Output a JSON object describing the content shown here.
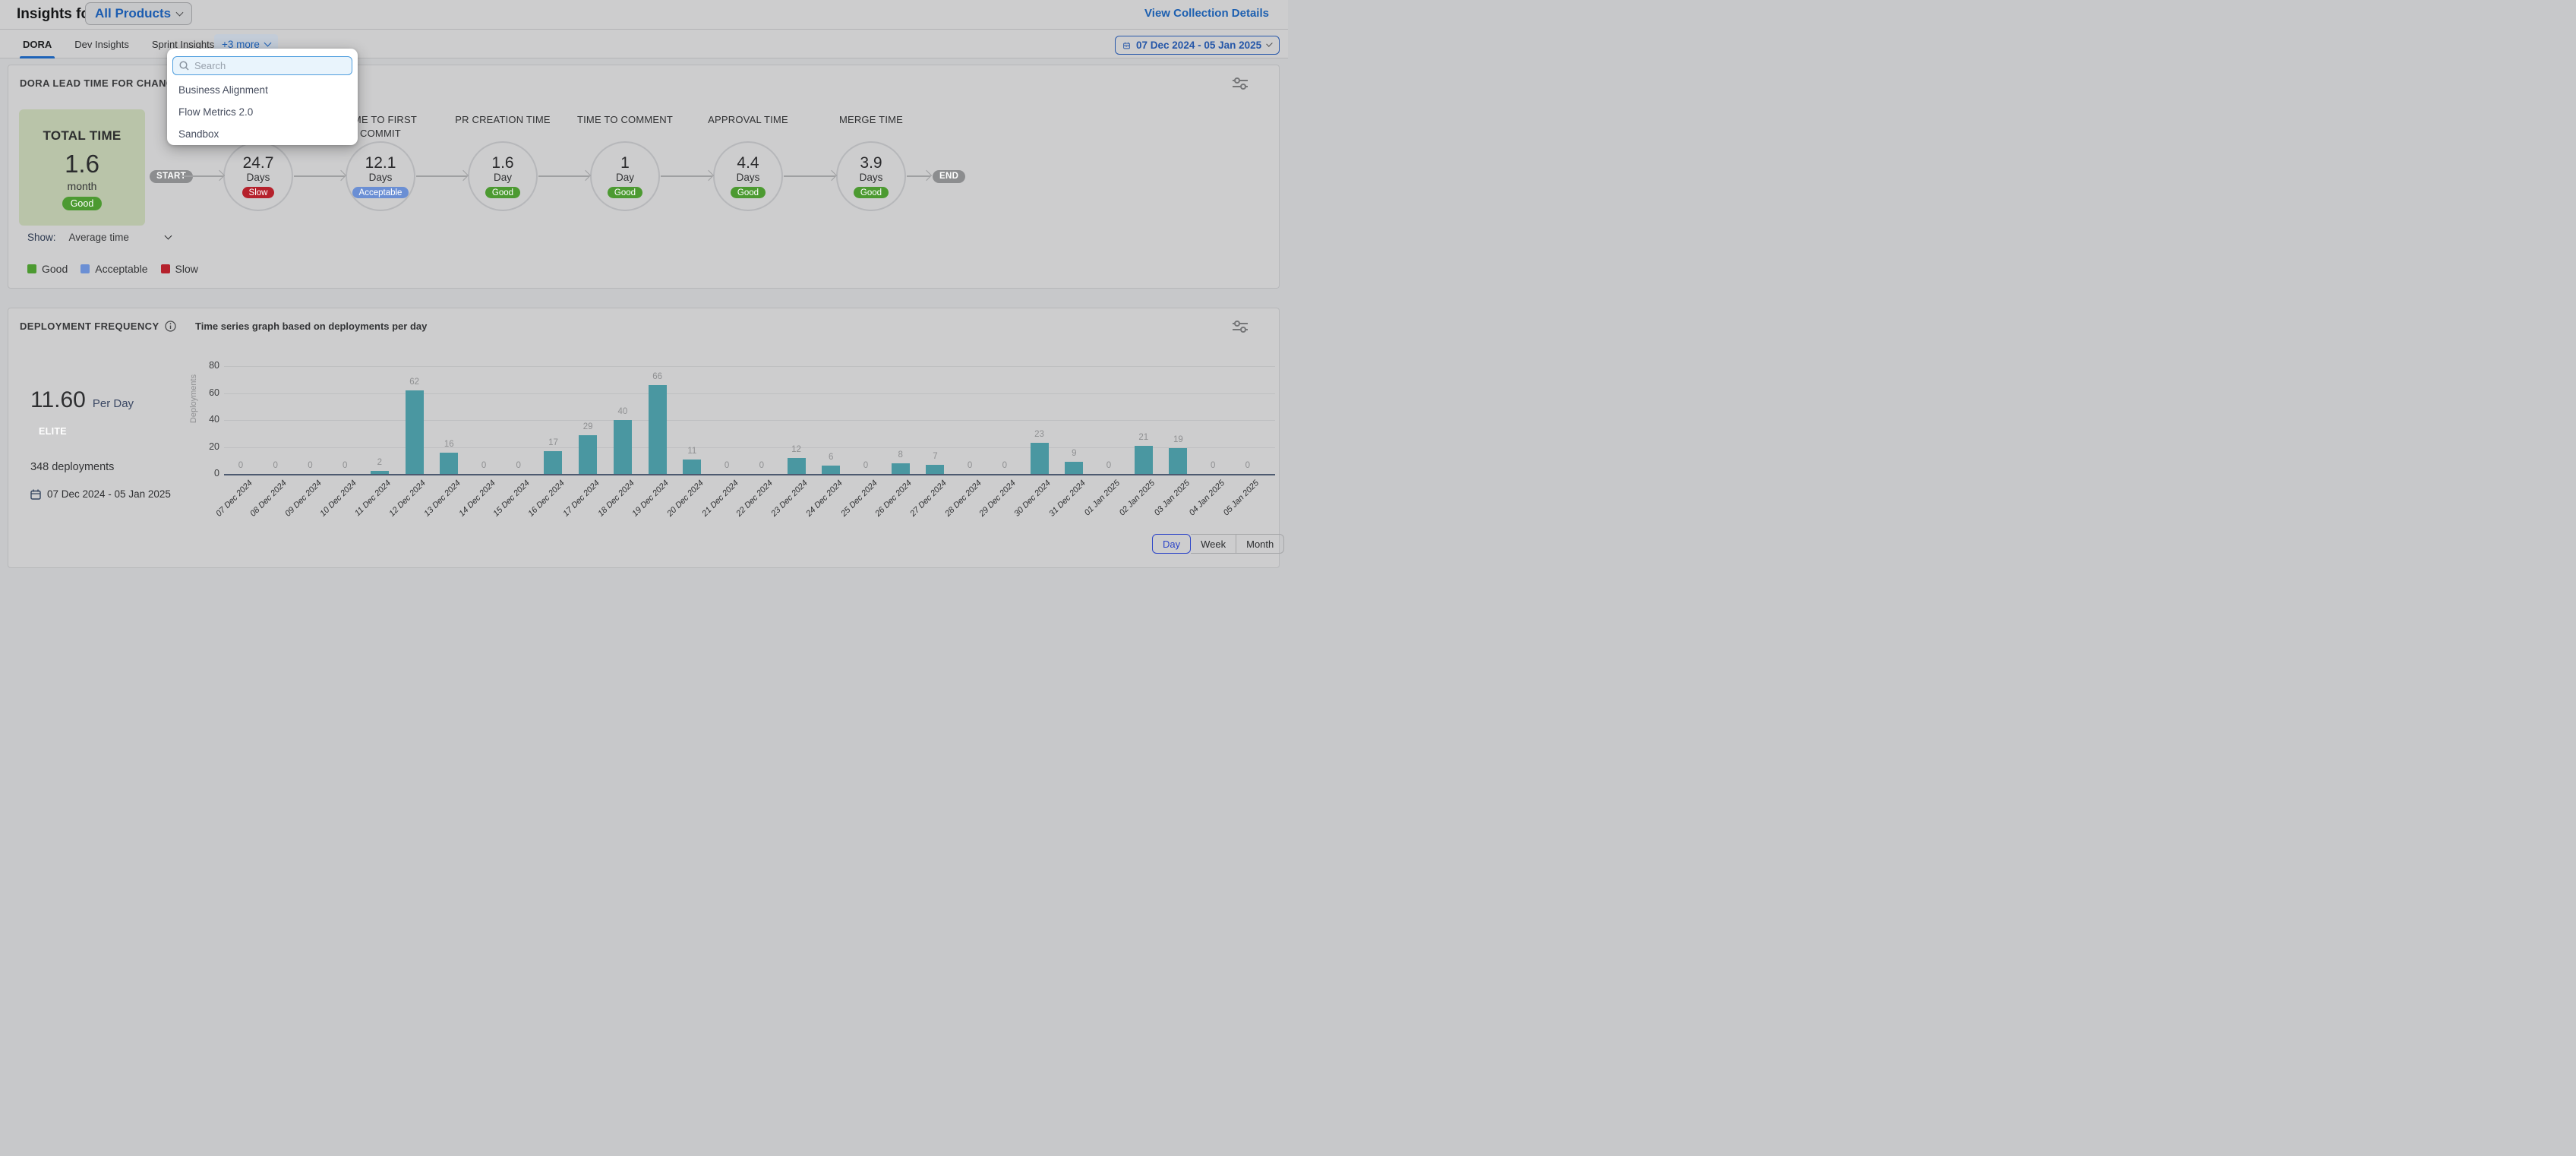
{
  "header": {
    "title": "Insights for",
    "collection_selector": "All Products",
    "view_details": "View Collection Details"
  },
  "tabs": {
    "items": [
      "DORA",
      "Dev Insights",
      "Sprint Insights"
    ],
    "active": "DORA",
    "more_label": "+3 more"
  },
  "date_range": {
    "label": "07 Dec 2024 - 05 Jan 2025"
  },
  "dropdown": {
    "search_placeholder": "Search",
    "items": [
      "Business Alignment",
      "Flow Metrics 2.0",
      "Sandbox"
    ]
  },
  "status_colors": {
    "Good": "#4c9a31",
    "Acceptable": "#6b8fd4",
    "Slow": "#b5212c"
  },
  "lead_time": {
    "title": "DORA LEAD TIME FOR CHANGES REPORT",
    "total": {
      "label": "TOTAL TIME",
      "value": "1.6",
      "unit": "month",
      "status": "Good"
    },
    "start_label": "START",
    "end_label": "END",
    "stages": [
      {
        "label": "",
        "value": "24.7",
        "unit": "Days",
        "status": "Slow"
      },
      {
        "label": "TIME TO FIRST COMMIT",
        "value": "12.1",
        "unit": "Days",
        "status": "Acceptable"
      },
      {
        "label": "PR CREATION TIME",
        "value": "1.6",
        "unit": "Day",
        "status": "Good"
      },
      {
        "label": "TIME TO COMMENT",
        "value": "1",
        "unit": "Day",
        "status": "Good"
      },
      {
        "label": "APPROVAL TIME",
        "value": "4.4",
        "unit": "Days",
        "status": "Good"
      },
      {
        "label": "MERGE TIME",
        "value": "3.9",
        "unit": "Days",
        "status": "Good"
      }
    ],
    "show_label": "Show:",
    "show_value": "Average time",
    "legend": [
      {
        "label": "Good",
        "color": "#4c9a31"
      },
      {
        "label": "Acceptable",
        "color": "#6b8fd4"
      },
      {
        "label": "Slow",
        "color": "#b5212c"
      }
    ]
  },
  "deployment": {
    "title": "DEPLOYMENT FREQUENCY",
    "rate_value": "11.60",
    "rate_unit": "Per Day",
    "tier": "ELITE",
    "total": "348 deployments",
    "date_range": "07 Dec 2024 - 05 Jan 2025",
    "view_options": [
      "Day",
      "Week",
      "Month"
    ],
    "active_view": "Day"
  },
  "chart_data": {
    "type": "bar",
    "title": "Time series graph based on deployments per day",
    "xlabel": "",
    "ylabel": "Deployments",
    "categories": [
      "07 Dec 2024",
      "08 Dec 2024",
      "09 Dec 2024",
      "10 Dec 2024",
      "11 Dec 2024",
      "12 Dec 2024",
      "13 Dec 2024",
      "14 Dec 2024",
      "15 Dec 2024",
      "16 Dec 2024",
      "17 Dec 2024",
      "18 Dec 2024",
      "19 Dec 2024",
      "20 Dec 2024",
      "21 Dec 2024",
      "22 Dec 2024",
      "23 Dec 2024",
      "24 Dec 2024",
      "25 Dec 2024",
      "26 Dec 2024",
      "27 Dec 2024",
      "28 Dec 2024",
      "29 Dec 2024",
      "30 Dec 2024",
      "31 Dec 2024",
      "01 Jan 2025",
      "02 Jan 2025",
      "03 Jan 2025",
      "04 Jan 2025",
      "05 Jan 2025"
    ],
    "values": [
      0,
      0,
      0,
      0,
      2,
      62,
      16,
      0,
      0,
      17,
      29,
      40,
      66,
      11,
      0,
      0,
      12,
      6,
      0,
      8,
      7,
      0,
      0,
      23,
      9,
      0,
      21,
      19,
      0,
      0
    ],
    "yticks": [
      0,
      20,
      40,
      60,
      80
    ],
    "ylim": [
      0,
      80
    ],
    "grid": true,
    "legend_position": "none",
    "bar_color": "#4a97a1"
  }
}
